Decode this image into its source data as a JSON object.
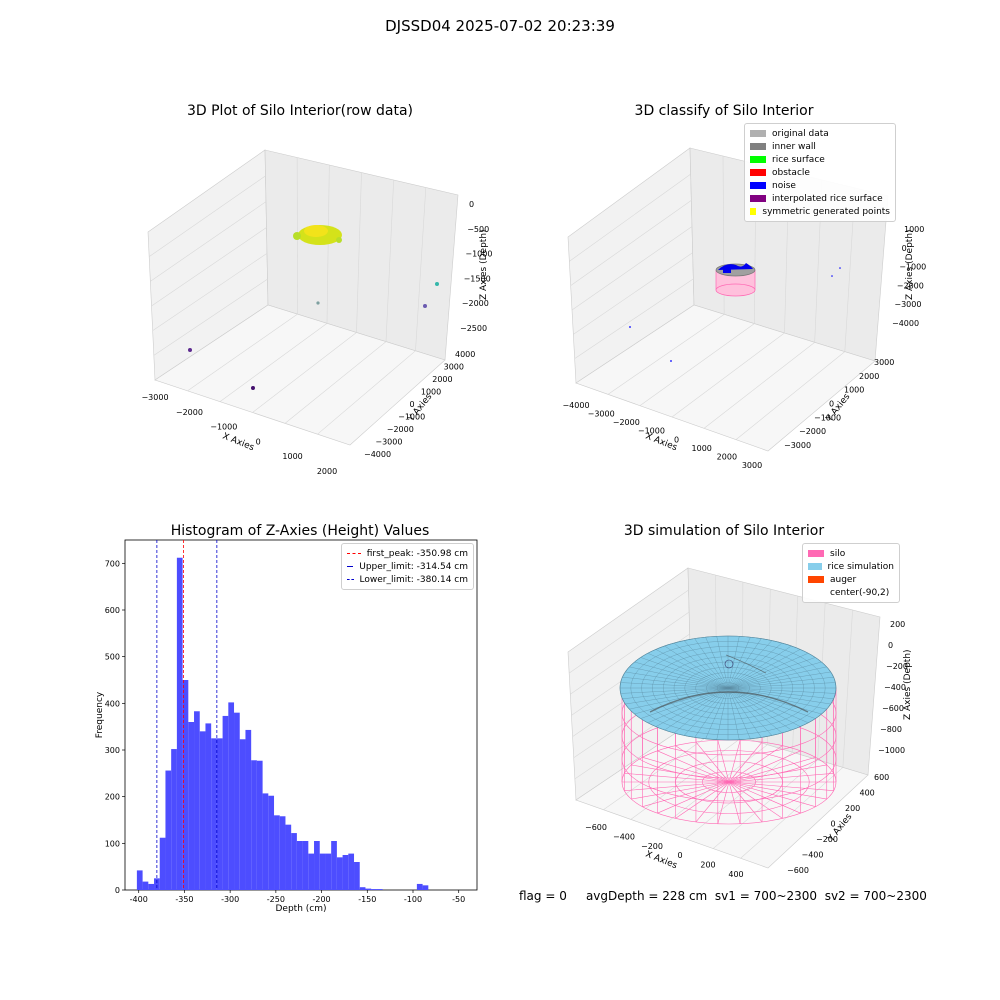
{
  "suptitle": "DJSSD04 2025-07-02 20:23:39",
  "status": {
    "flag": "flag = 0",
    "avg_depth": "avgDepth = 228 cm",
    "sv1": "sv1 = 700~2300",
    "sv2": "sv2 = 700~2300"
  },
  "colors": {
    "hist_bar": "#4d4dff",
    "peak_line": "#ff0000",
    "limit_line": "#0000cc",
    "silo_wire": "#ff69b4",
    "rice_surface": "#87ceeb",
    "auger": "#ff4500"
  },
  "panels": {
    "raw": {
      "title": "3D Plot of Silo Interior(row data)",
      "xlabel": "X Axies",
      "ylabel": "Y Axies",
      "zlabel": "Z Axies (Depth)",
      "xticks": [
        "−3000",
        "−2000",
        "−1000",
        "0",
        "1000",
        "2000"
      ],
      "yticks": [
        "4000",
        "3000",
        "2000",
        "1000",
        "0",
        "−1000",
        "−2000",
        "−3000",
        "−4000"
      ],
      "zticks": [
        "0",
        "−500",
        "−1000",
        "−1500",
        "−2000",
        "−2500"
      ]
    },
    "classify": {
      "title": "3D classify of Silo Interior",
      "xlabel": "X Axies",
      "ylabel": "Y Axies",
      "zlabel": "Z Axies (Depth)",
      "xticks": [
        "−4000",
        "−3000",
        "−2000",
        "−1000",
        "0",
        "1000",
        "2000",
        "3000"
      ],
      "yticks": [
        "3000",
        "2000",
        "1000",
        "0",
        "−1000",
        "−2000",
        "−3000"
      ],
      "zticks": [
        "1000",
        "0",
        "−1000",
        "−2000",
        "−3000",
        "−4000"
      ],
      "legend": [
        {
          "label": "original data",
          "color": "#b0b0b0"
        },
        {
          "label": "inner wall",
          "color": "#808080"
        },
        {
          "label": "rice surface",
          "color": "#00ff00"
        },
        {
          "label": "obstacle",
          "color": "#ff0000"
        },
        {
          "label": "noise",
          "color": "#0000ff"
        },
        {
          "label": "interpolated rice surface",
          "color": "#800080"
        },
        {
          "label": "symmetric generated points",
          "color": "#ffff00"
        }
      ]
    },
    "simulation": {
      "title": "3D simulation of Silo Interior",
      "xlabel": "X Axies",
      "ylabel": "Y Axies",
      "zlabel": "Z Axies (Depth)",
      "xticks": [
        "−600",
        "−400",
        "−200",
        "0",
        "200",
        "400"
      ],
      "yticks": [
        "600",
        "400",
        "200",
        "0",
        "−200",
        "−400",
        "−600"
      ],
      "zticks": [
        "200",
        "0",
        "−200",
        "−400",
        "−600",
        "−800",
        "−1000"
      ],
      "legend": [
        {
          "label": "silo",
          "color": "#ff69b4"
        },
        {
          "label": "rice simulation",
          "color": "#87ceeb"
        },
        {
          "label": "auger",
          "color": "#ff4500"
        },
        {
          "label": "center(-90,2)",
          "color": ""
        }
      ]
    }
  },
  "chart_data": {
    "type": "bar",
    "title": "Histogram of Z-Axies (Height) Values",
    "xlabel": "Depth (cm)",
    "ylabel": "Frequency",
    "xlim": [
      -415,
      -30
    ],
    "ylim": [
      0,
      750
    ],
    "xticks": [
      -400,
      -350,
      -300,
      -250,
      -200,
      -150,
      -100,
      -50
    ],
    "yticks": [
      0,
      100,
      200,
      300,
      400,
      500,
      600,
      700
    ],
    "bin_start": -402,
    "bin_width": 6.25,
    "values": [
      42,
      18,
      13,
      25,
      112,
      256,
      302,
      712,
      450,
      360,
      383,
      340,
      357,
      325,
      325,
      373,
      402,
      380,
      323,
      343,
      278,
      277,
      207,
      202,
      160,
      158,
      140,
      122,
      105,
      105,
      78,
      105,
      78,
      78,
      105,
      70,
      75,
      78,
      60,
      6,
      3,
      2,
      2,
      0,
      0,
      0,
      0,
      0,
      0,
      13,
      10
    ],
    "lines": [
      {
        "label": "first_peak: -350.98 cm",
        "x": -350.98,
        "color": "#ff0000"
      },
      {
        "label": "Upper_limit: -314.54 cm",
        "x": -314.54,
        "color": "#0000cc"
      },
      {
        "label": "Lower_limit: -380.14 cm",
        "x": -380.14,
        "color": "#0000cc"
      }
    ]
  }
}
